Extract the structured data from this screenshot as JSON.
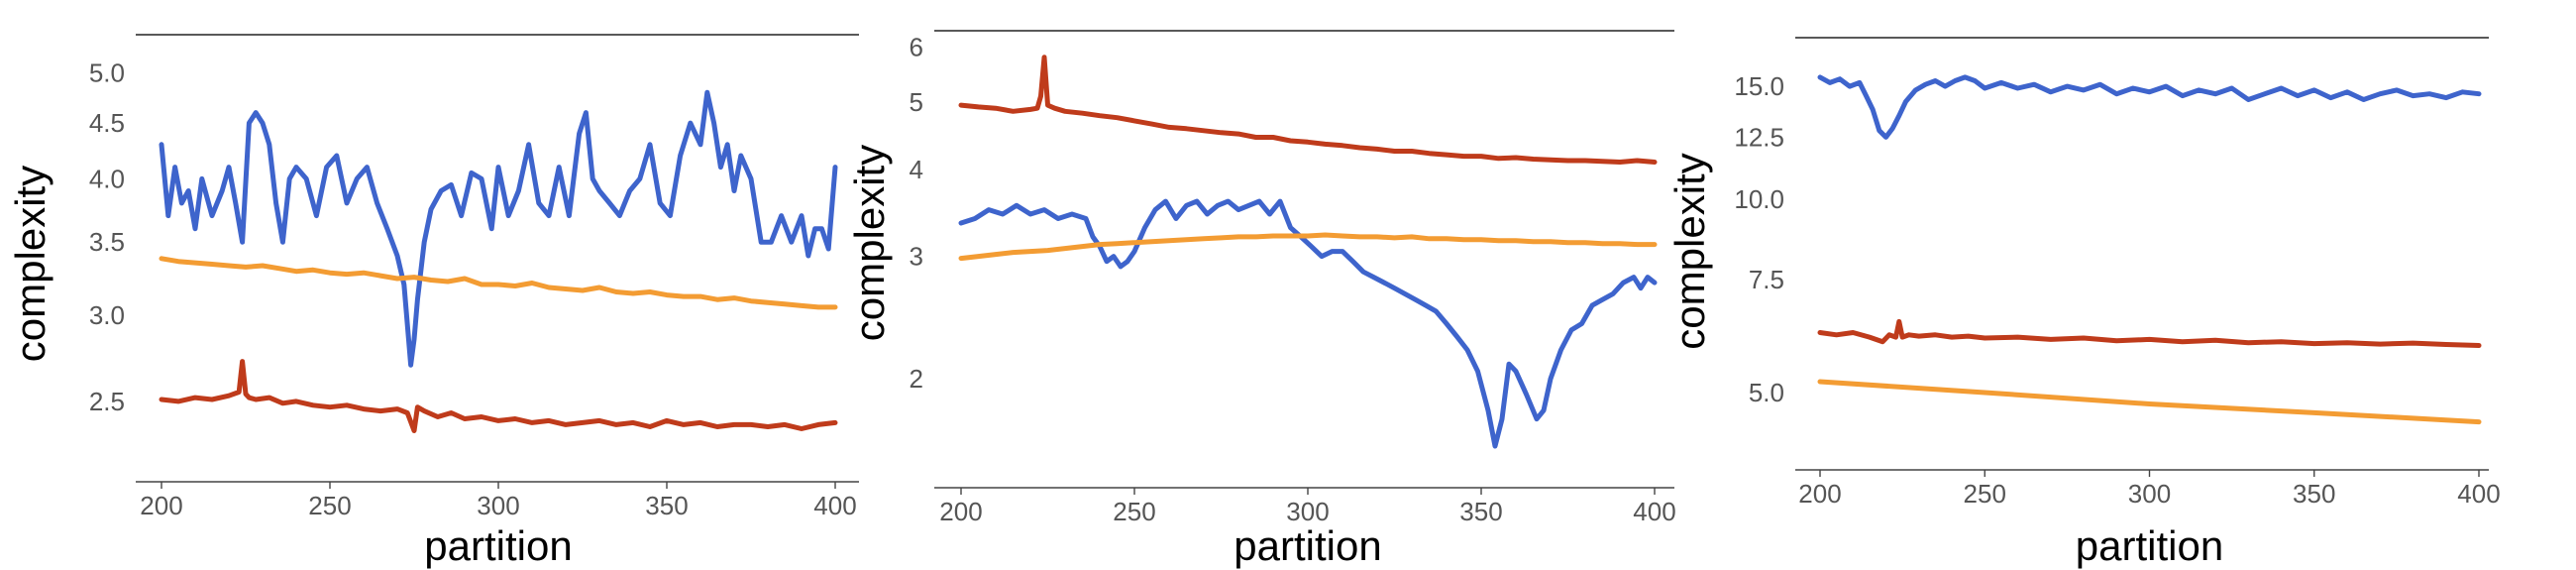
{
  "chart_data": [
    {
      "type": "line",
      "xlabel": "partition",
      "ylabel": "complexity",
      "xlim": [
        200,
        400
      ],
      "ylim": [
        2.15,
        5.2
      ],
      "y_scale": "log",
      "x_ticks": [
        200,
        250,
        300,
        350,
        400
      ],
      "y_ticks": [
        2.5,
        3.0,
        3.5,
        4.0,
        4.5,
        5.0
      ],
      "y_tick_labels": [
        "2.5",
        "3.0",
        "3.5",
        "4.0",
        "4.5",
        "5.0"
      ],
      "series": [
        {
          "color": "#3e64cc",
          "x": [
            200,
            202,
            204,
            206,
            208,
            210,
            212,
            215,
            218,
            220,
            222,
            224,
            226,
            228,
            230,
            232,
            234,
            236,
            238,
            240,
            243,
            246,
            249,
            252,
            255,
            258,
            261,
            264,
            267,
            270,
            272,
            274,
            275,
            276,
            278,
            280,
            283,
            286,
            289,
            292,
            295,
            298,
            300,
            303,
            306,
            309,
            312,
            315,
            318,
            321,
            324,
            326,
            328,
            330,
            333,
            336,
            339,
            342,
            345,
            348,
            351,
            354,
            357,
            360,
            362,
            364,
            366,
            368,
            370,
            372,
            375,
            378,
            381,
            384,
            387,
            390,
            392,
            394,
            396,
            398,
            400
          ],
          "values": [
            4.3,
            3.7,
            4.1,
            3.8,
            3.9,
            3.6,
            4.0,
            3.7,
            3.9,
            4.1,
            3.8,
            3.5,
            4.5,
            4.6,
            4.5,
            4.3,
            3.8,
            3.5,
            4.0,
            4.1,
            4.0,
            3.7,
            4.1,
            4.2,
            3.8,
            4.0,
            4.1,
            3.8,
            3.6,
            3.4,
            3.2,
            2.7,
            2.85,
            3.1,
            3.5,
            3.75,
            3.9,
            3.95,
            3.7,
            4.05,
            4.0,
            3.6,
            4.1,
            3.7,
            3.9,
            4.3,
            3.8,
            3.7,
            4.1,
            3.7,
            4.4,
            4.6,
            4.0,
            3.9,
            3.8,
            3.7,
            3.9,
            4.0,
            4.3,
            3.8,
            3.7,
            4.2,
            4.5,
            4.3,
            4.8,
            4.5,
            4.1,
            4.3,
            3.9,
            4.2,
            4.0,
            3.5,
            3.5,
            3.7,
            3.5,
            3.7,
            3.4,
            3.6,
            3.6,
            3.45,
            4.1
          ]
        },
        {
          "color": "#f39c33",
          "x": [
            200,
            205,
            210,
            215,
            220,
            225,
            230,
            235,
            240,
            245,
            250,
            255,
            260,
            265,
            270,
            275,
            280,
            285,
            290,
            295,
            300,
            305,
            310,
            315,
            320,
            325,
            330,
            335,
            340,
            345,
            350,
            355,
            360,
            365,
            370,
            375,
            380,
            385,
            390,
            395,
            400
          ],
          "values": [
            3.38,
            3.36,
            3.35,
            3.34,
            3.33,
            3.32,
            3.33,
            3.31,
            3.29,
            3.3,
            3.28,
            3.27,
            3.28,
            3.26,
            3.24,
            3.25,
            3.23,
            3.22,
            3.24,
            3.2,
            3.2,
            3.19,
            3.21,
            3.18,
            3.17,
            3.16,
            3.18,
            3.15,
            3.14,
            3.15,
            3.13,
            3.12,
            3.12,
            3.1,
            3.11,
            3.09,
            3.08,
            3.07,
            3.06,
            3.05,
            3.05
          ]
        },
        {
          "color": "#bf3b1b",
          "x": [
            200,
            205,
            210,
            215,
            220,
            223,
            224,
            225,
            226,
            228,
            232,
            236,
            240,
            245,
            250,
            255,
            260,
            265,
            270,
            273,
            275,
            276,
            278,
            282,
            286,
            290,
            295,
            300,
            305,
            310,
            315,
            320,
            325,
            330,
            335,
            340,
            345,
            350,
            355,
            360,
            365,
            370,
            375,
            380,
            385,
            390,
            395,
            400
          ],
          "values": [
            2.51,
            2.5,
            2.52,
            2.51,
            2.53,
            2.55,
            2.72,
            2.54,
            2.52,
            2.51,
            2.52,
            2.49,
            2.5,
            2.48,
            2.47,
            2.48,
            2.46,
            2.45,
            2.46,
            2.44,
            2.35,
            2.47,
            2.45,
            2.42,
            2.44,
            2.41,
            2.42,
            2.4,
            2.41,
            2.39,
            2.4,
            2.38,
            2.39,
            2.4,
            2.38,
            2.39,
            2.37,
            2.4,
            2.38,
            2.39,
            2.37,
            2.38,
            2.38,
            2.37,
            2.38,
            2.36,
            2.38,
            2.39
          ]
        }
      ]
    },
    {
      "type": "line",
      "xlabel": "partition",
      "ylabel": "complexity",
      "xlim": [
        200,
        400
      ],
      "ylim": [
        1.6,
        6.15
      ],
      "y_scale": "log",
      "x_ticks": [
        200,
        250,
        300,
        350,
        400
      ],
      "y_ticks": [
        2,
        3,
        4,
        5,
        6
      ],
      "y_tick_labels": [
        "2",
        "3",
        "4",
        "5",
        "6"
      ],
      "series": [
        {
          "color": "#3e64cc",
          "x": [
            200,
            204,
            208,
            212,
            216,
            220,
            224,
            228,
            232,
            236,
            238,
            240,
            242,
            244,
            246,
            248,
            250,
            253,
            256,
            259,
            262,
            265,
            268,
            271,
            274,
            277,
            280,
            283,
            286,
            289,
            292,
            295,
            298,
            301,
            304,
            307,
            310,
            313,
            316,
            319,
            322,
            325,
            328,
            331,
            334,
            337,
            340,
            343,
            346,
            349,
            352,
            354,
            356,
            358,
            360,
            363,
            366,
            368,
            370,
            373,
            376,
            379,
            382,
            385,
            388,
            391,
            394,
            396,
            398,
            400
          ],
          "values": [
            3.35,
            3.4,
            3.5,
            3.45,
            3.55,
            3.45,
            3.5,
            3.4,
            3.45,
            3.4,
            3.2,
            3.1,
            2.95,
            3.0,
            2.9,
            2.95,
            3.05,
            3.3,
            3.5,
            3.6,
            3.4,
            3.55,
            3.6,
            3.45,
            3.55,
            3.6,
            3.5,
            3.55,
            3.6,
            3.45,
            3.6,
            3.3,
            3.2,
            3.1,
            3.0,
            3.05,
            3.05,
            2.95,
            2.85,
            2.8,
            2.75,
            2.7,
            2.65,
            2.6,
            2.55,
            2.5,
            2.4,
            2.3,
            2.2,
            2.05,
            1.8,
            1.6,
            1.75,
            2.1,
            2.05,
            1.9,
            1.75,
            1.8,
            2.0,
            2.2,
            2.35,
            2.4,
            2.55,
            2.6,
            2.65,
            2.75,
            2.8,
            2.7,
            2.8,
            2.75
          ]
        },
        {
          "color": "#f39c33",
          "x": [
            200,
            205,
            210,
            215,
            220,
            225,
            230,
            235,
            240,
            245,
            250,
            255,
            260,
            265,
            270,
            275,
            280,
            285,
            290,
            295,
            300,
            305,
            310,
            315,
            320,
            325,
            330,
            335,
            340,
            345,
            350,
            355,
            360,
            365,
            370,
            375,
            380,
            385,
            390,
            395,
            400
          ],
          "values": [
            2.98,
            3.0,
            3.02,
            3.04,
            3.05,
            3.06,
            3.08,
            3.1,
            3.12,
            3.13,
            3.14,
            3.15,
            3.16,
            3.17,
            3.18,
            3.19,
            3.2,
            3.2,
            3.21,
            3.21,
            3.21,
            3.22,
            3.21,
            3.2,
            3.2,
            3.19,
            3.2,
            3.18,
            3.18,
            3.17,
            3.17,
            3.16,
            3.16,
            3.15,
            3.15,
            3.14,
            3.14,
            3.13,
            3.13,
            3.12,
            3.12
          ]
        },
        {
          "color": "#bf3b1b",
          "x": [
            200,
            205,
            210,
            215,
            220,
            222,
            223,
            224,
            225,
            227,
            230,
            235,
            240,
            245,
            250,
            255,
            260,
            265,
            270,
            275,
            280,
            285,
            290,
            295,
            300,
            305,
            310,
            315,
            320,
            325,
            330,
            335,
            340,
            345,
            350,
            355,
            360,
            365,
            370,
            375,
            380,
            385,
            390,
            395,
            400
          ],
          "values": [
            4.95,
            4.92,
            4.9,
            4.85,
            4.88,
            4.9,
            5.1,
            5.8,
            4.95,
            4.9,
            4.85,
            4.82,
            4.78,
            4.75,
            4.7,
            4.65,
            4.6,
            4.58,
            4.55,
            4.52,
            4.5,
            4.45,
            4.45,
            4.4,
            4.38,
            4.35,
            4.33,
            4.3,
            4.28,
            4.25,
            4.25,
            4.22,
            4.2,
            4.18,
            4.18,
            4.15,
            4.16,
            4.14,
            4.13,
            4.12,
            4.12,
            4.11,
            4.1,
            4.12,
            4.1
          ]
        }
      ]
    },
    {
      "type": "line",
      "xlabel": "partition",
      "ylabel": "complexity",
      "xlim": [
        200,
        400
      ],
      "ylim": [
        4.2,
        16.4
      ],
      "y_scale": "log",
      "x_ticks": [
        200,
        250,
        300,
        350,
        400
      ],
      "y_ticks": [
        5.0,
        7.5,
        10.0,
        12.5,
        15.0
      ],
      "y_tick_labels": [
        "5.0",
        "7.5",
        "10.0",
        "12.5",
        "15.0"
      ],
      "series": [
        {
          "color": "#3e64cc",
          "x": [
            200,
            203,
            206,
            209,
            212,
            214,
            216,
            218,
            220,
            222,
            224,
            226,
            229,
            232,
            235,
            238,
            241,
            244,
            247,
            250,
            255,
            260,
            265,
            270,
            275,
            280,
            285,
            290,
            295,
            300,
            305,
            310,
            315,
            320,
            325,
            330,
            335,
            340,
            345,
            350,
            355,
            360,
            365,
            370,
            375,
            380,
            385,
            390,
            395,
            400
          ],
          "values": [
            15.5,
            15.2,
            15.4,
            15.0,
            15.2,
            14.5,
            13.8,
            12.8,
            12.5,
            12.9,
            13.5,
            14.2,
            14.8,
            15.1,
            15.3,
            15.0,
            15.3,
            15.5,
            15.3,
            14.9,
            15.2,
            14.9,
            15.1,
            14.7,
            15.0,
            14.8,
            15.1,
            14.6,
            14.9,
            14.7,
            15.0,
            14.5,
            14.8,
            14.6,
            14.9,
            14.3,
            14.6,
            14.9,
            14.5,
            14.8,
            14.4,
            14.7,
            14.3,
            14.6,
            14.8,
            14.5,
            14.6,
            14.4,
            14.7,
            14.6
          ]
        },
        {
          "color": "#f39c33",
          "x": [
            200,
            250,
            300,
            350,
            400
          ],
          "values": [
            5.2,
            5.0,
            4.8,
            4.65,
            4.5
          ]
        },
        {
          "color": "#bf3b1b",
          "x": [
            200,
            205,
            210,
            215,
            219,
            221,
            223,
            224,
            225,
            227,
            230,
            235,
            240,
            245,
            250,
            260,
            270,
            280,
            290,
            300,
            310,
            320,
            330,
            340,
            350,
            360,
            370,
            380,
            390,
            400
          ],
          "values": [
            6.2,
            6.15,
            6.2,
            6.1,
            6.0,
            6.15,
            6.1,
            6.45,
            6.1,
            6.15,
            6.12,
            6.15,
            6.1,
            6.12,
            6.08,
            6.1,
            6.05,
            6.08,
            6.02,
            6.05,
            6.0,
            6.03,
            5.98,
            6.0,
            5.96,
            5.98,
            5.95,
            5.97,
            5.94,
            5.92
          ]
        }
      ]
    }
  ]
}
